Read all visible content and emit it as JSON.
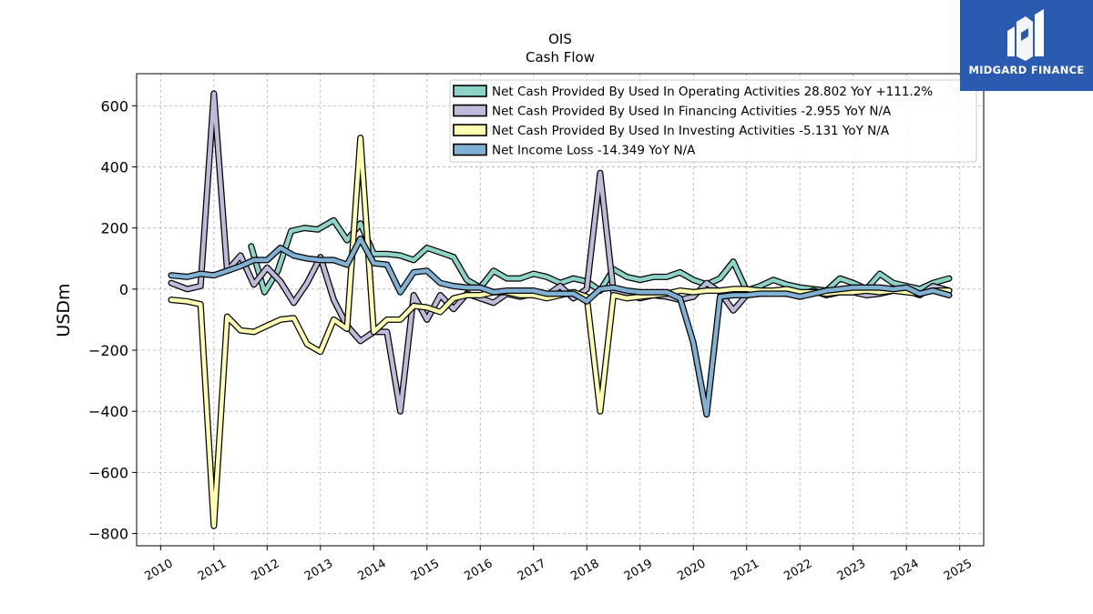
{
  "brand": {
    "name": "MIDGARD FINANCE",
    "bg_color": "#2a5bb0",
    "icon": "midgard-logo-icon"
  },
  "chart_data": {
    "type": "line",
    "title": "OIS",
    "subtitle": "Cash Flow",
    "ylabel": "USDm",
    "xlabel": "",
    "xlim": [
      2009.55,
      2025.45
    ],
    "ylim": [
      -840,
      705
    ],
    "yticks": [
      -800,
      -600,
      -400,
      -200,
      0,
      200,
      400,
      600
    ],
    "ytick_labels": [
      "−800",
      "−600",
      "−400",
      "−200",
      "0",
      "200",
      "400",
      "600"
    ],
    "xticks": [
      2010,
      2011,
      2012,
      2013,
      2014,
      2015,
      2016,
      2017,
      2018,
      2019,
      2020,
      2021,
      2022,
      2023,
      2024,
      2025
    ],
    "xtick_labels": [
      "2010",
      "2011",
      "2012",
      "2013",
      "2014",
      "2015",
      "2016",
      "2017",
      "2018",
      "2019",
      "2020",
      "2021",
      "2022",
      "2023",
      "2024",
      "2025"
    ],
    "grid": true,
    "legend_position": "top-right",
    "series": [
      {
        "name": "Net Cash Provided By Used In Operating Activities  28.802 YoY +111.2%",
        "color": "#8dd3c7",
        "points": [
          [
            2011.7,
            140
          ],
          [
            2011.95,
            -10
          ],
          [
            2012.2,
            60
          ],
          [
            2012.45,
            190
          ],
          [
            2012.7,
            200
          ],
          [
            2012.95,
            195
          ],
          [
            2013.25,
            225
          ],
          [
            2013.5,
            160
          ],
          [
            2013.75,
            215
          ],
          [
            2014.0,
            115
          ],
          [
            2014.25,
            115
          ],
          [
            2014.5,
            110
          ],
          [
            2014.75,
            95
          ],
          [
            2015.0,
            135
          ],
          [
            2015.25,
            120
          ],
          [
            2015.5,
            105
          ],
          [
            2015.75,
            30
          ],
          [
            2016.0,
            5
          ],
          [
            2016.25,
            60
          ],
          [
            2016.5,
            35
          ],
          [
            2016.75,
            35
          ],
          [
            2017.0,
            50
          ],
          [
            2017.25,
            40
          ],
          [
            2017.5,
            20
          ],
          [
            2017.75,
            35
          ],
          [
            2018.0,
            25
          ],
          [
            2018.25,
            -5
          ],
          [
            2018.5,
            65
          ],
          [
            2018.75,
            40
          ],
          [
            2019.0,
            30
          ],
          [
            2019.25,
            40
          ],
          [
            2019.5,
            40
          ],
          [
            2019.75,
            55
          ],
          [
            2020.0,
            30
          ],
          [
            2020.25,
            15
          ],
          [
            2020.5,
            35
          ],
          [
            2020.75,
            90
          ],
          [
            2021.0,
            -5
          ],
          [
            2021.25,
            10
          ],
          [
            2021.5,
            30
          ],
          [
            2021.75,
            15
          ],
          [
            2022.0,
            5
          ],
          [
            2022.25,
            0
          ],
          [
            2022.5,
            -5
          ],
          [
            2022.75,
            35
          ],
          [
            2023.0,
            20
          ],
          [
            2023.25,
            0
          ],
          [
            2023.5,
            50
          ],
          [
            2023.75,
            20
          ],
          [
            2024.0,
            10
          ],
          [
            2024.25,
            0
          ],
          [
            2024.5,
            20
          ],
          [
            2024.8,
            35
          ]
        ]
      },
      {
        "name": "Net Cash Provided By Used In Financing Activities  -2.955 YoY N/A",
        "color": "#bebada",
        "points": [
          [
            2010.2,
            20
          ],
          [
            2010.5,
            0
          ],
          [
            2010.75,
            10
          ],
          [
            2011.0,
            640
          ],
          [
            2011.25,
            60
          ],
          [
            2011.5,
            110
          ],
          [
            2011.75,
            15
          ],
          [
            2012.0,
            70
          ],
          [
            2012.25,
            25
          ],
          [
            2012.5,
            -45
          ],
          [
            2012.75,
            20
          ],
          [
            2013.0,
            105
          ],
          [
            2013.25,
            -35
          ],
          [
            2013.5,
            -120
          ],
          [
            2013.75,
            -170
          ],
          [
            2014.0,
            -140
          ],
          [
            2014.25,
            -140
          ],
          [
            2014.5,
            -400
          ],
          [
            2014.75,
            -20
          ],
          [
            2015.0,
            -100
          ],
          [
            2015.25,
            -20
          ],
          [
            2015.5,
            -65
          ],
          [
            2015.75,
            -15
          ],
          [
            2016.0,
            -30
          ],
          [
            2016.25,
            -45
          ],
          [
            2016.5,
            -15
          ],
          [
            2016.75,
            -25
          ],
          [
            2017.0,
            -15
          ],
          [
            2017.25,
            -20
          ],
          [
            2017.5,
            10
          ],
          [
            2017.75,
            -30
          ],
          [
            2018.0,
            0
          ],
          [
            2018.25,
            380
          ],
          [
            2018.5,
            -10
          ],
          [
            2018.75,
            -15
          ],
          [
            2019.0,
            -30
          ],
          [
            2019.25,
            -20
          ],
          [
            2019.5,
            -25
          ],
          [
            2019.75,
            -35
          ],
          [
            2020.0,
            -25
          ],
          [
            2020.25,
            20
          ],
          [
            2020.5,
            -10
          ],
          [
            2020.75,
            -70
          ],
          [
            2021.0,
            -20
          ],
          [
            2021.25,
            -15
          ],
          [
            2021.5,
            -10
          ],
          [
            2021.75,
            -15
          ],
          [
            2022.0,
            -20
          ],
          [
            2022.25,
            -5
          ],
          [
            2022.5,
            -20
          ],
          [
            2022.75,
            -10
          ],
          [
            2023.0,
            -10
          ],
          [
            2023.25,
            -20
          ],
          [
            2023.5,
            -15
          ],
          [
            2023.75,
            -5
          ],
          [
            2024.0,
            -5
          ],
          [
            2024.25,
            -20
          ],
          [
            2024.5,
            10
          ],
          [
            2024.8,
            -5
          ]
        ]
      },
      {
        "name": "Net Cash Provided By Used In Investing Activities  -5.131 YoY N/A",
        "color": "#ffffb3",
        "points": [
          [
            2010.2,
            -35
          ],
          [
            2010.5,
            -40
          ],
          [
            2010.75,
            -50
          ],
          [
            2011.0,
            -775
          ],
          [
            2011.25,
            -90
          ],
          [
            2011.5,
            -135
          ],
          [
            2011.75,
            -140
          ],
          [
            2012.0,
            -120
          ],
          [
            2012.25,
            -100
          ],
          [
            2012.5,
            -95
          ],
          [
            2012.75,
            -180
          ],
          [
            2013.0,
            -205
          ],
          [
            2013.25,
            -100
          ],
          [
            2013.5,
            -130
          ],
          [
            2013.75,
            495
          ],
          [
            2014.0,
            -140
          ],
          [
            2014.25,
            -100
          ],
          [
            2014.5,
            -100
          ],
          [
            2014.75,
            -55
          ],
          [
            2015.0,
            -60
          ],
          [
            2015.25,
            -75
          ],
          [
            2015.5,
            -30
          ],
          [
            2015.75,
            -20
          ],
          [
            2016.0,
            -20
          ],
          [
            2016.25,
            -10
          ],
          [
            2016.5,
            -10
          ],
          [
            2016.75,
            -20
          ],
          [
            2017.0,
            -20
          ],
          [
            2017.25,
            -30
          ],
          [
            2017.5,
            -20
          ],
          [
            2017.75,
            -10
          ],
          [
            2018.0,
            -25
          ],
          [
            2018.25,
            -400
          ],
          [
            2018.5,
            -20
          ],
          [
            2018.75,
            -30
          ],
          [
            2019.0,
            -25
          ],
          [
            2019.25,
            -20
          ],
          [
            2019.5,
            -15
          ],
          [
            2019.75,
            -5
          ],
          [
            2020.0,
            -10
          ],
          [
            2020.25,
            -5
          ],
          [
            2020.5,
            -5
          ],
          [
            2020.75,
            0
          ],
          [
            2021.0,
            0
          ],
          [
            2021.25,
            -5
          ],
          [
            2021.5,
            -5
          ],
          [
            2021.75,
            0
          ],
          [
            2022.0,
            -10
          ],
          [
            2022.25,
            -10
          ],
          [
            2022.5,
            -15
          ],
          [
            2022.75,
            -10
          ],
          [
            2023.0,
            -10
          ],
          [
            2023.25,
            -5
          ],
          [
            2023.5,
            -10
          ],
          [
            2023.75,
            -5
          ],
          [
            2024.0,
            -10
          ],
          [
            2024.25,
            -15
          ],
          [
            2024.5,
            -5
          ],
          [
            2024.8,
            -5
          ]
        ]
      },
      {
        "name": "Net Income Loss  -14.349 YoY N/A",
        "color": "#80b1d3",
        "points": [
          [
            2010.2,
            45
          ],
          [
            2010.5,
            40
          ],
          [
            2010.75,
            50
          ],
          [
            2011.0,
            45
          ],
          [
            2011.25,
            60
          ],
          [
            2011.5,
            75
          ],
          [
            2011.75,
            95
          ],
          [
            2012.0,
            95
          ],
          [
            2012.25,
            135
          ],
          [
            2012.5,
            110
          ],
          [
            2012.75,
            100
          ],
          [
            2013.0,
            95
          ],
          [
            2013.25,
            95
          ],
          [
            2013.5,
            80
          ],
          [
            2013.75,
            165
          ],
          [
            2014.0,
            85
          ],
          [
            2014.25,
            80
          ],
          [
            2014.5,
            -10
          ],
          [
            2014.75,
            55
          ],
          [
            2015.0,
            60
          ],
          [
            2015.25,
            20
          ],
          [
            2015.5,
            10
          ],
          [
            2015.75,
            5
          ],
          [
            2016.0,
            5
          ],
          [
            2016.25,
            -10
          ],
          [
            2016.5,
            -5
          ],
          [
            2016.75,
            -5
          ],
          [
            2017.0,
            -5
          ],
          [
            2017.25,
            -15
          ],
          [
            2017.5,
            -15
          ],
          [
            2017.75,
            -15
          ],
          [
            2018.0,
            -40
          ],
          [
            2018.25,
            0
          ],
          [
            2018.5,
            5
          ],
          [
            2018.75,
            -5
          ],
          [
            2019.0,
            -10
          ],
          [
            2019.25,
            -10
          ],
          [
            2019.5,
            -10
          ],
          [
            2019.75,
            -30
          ],
          [
            2020.0,
            -175
          ],
          [
            2020.25,
            -410
          ],
          [
            2020.5,
            -25
          ],
          [
            2020.75,
            -20
          ],
          [
            2021.0,
            -20
          ],
          [
            2021.25,
            -15
          ],
          [
            2021.5,
            -15
          ],
          [
            2021.75,
            -15
          ],
          [
            2022.0,
            -25
          ],
          [
            2022.25,
            -15
          ],
          [
            2022.5,
            -5
          ],
          [
            2022.75,
            0
          ],
          [
            2023.0,
            5
          ],
          [
            2023.25,
            5
          ],
          [
            2023.5,
            5
          ],
          [
            2023.75,
            0
          ],
          [
            2024.0,
            5
          ],
          [
            2024.25,
            -15
          ],
          [
            2024.5,
            -5
          ],
          [
            2024.8,
            -20
          ]
        ]
      }
    ]
  }
}
